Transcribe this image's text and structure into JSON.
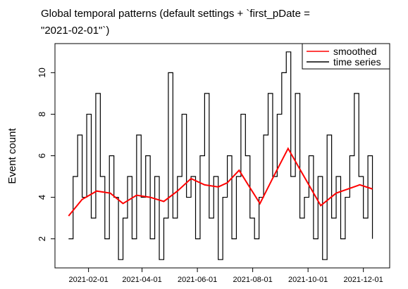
{
  "chart_data": {
    "type": "line",
    "title": [
      "Global temporal patterns (default settings + `first_pDate =",
      "\"2021-02-01\"`)"
    ],
    "y_label": "Event count",
    "xlim": [
      "2020-12-26",
      "2021-12-30"
    ],
    "xticks": [
      "2021-02-01",
      "2021-04-01",
      "2021-06-01",
      "2021-08-01",
      "2021-10-01",
      "2021-12-01"
    ],
    "ylim": [
      0.6,
      11.4
    ],
    "yticks": [
      2,
      4,
      6,
      8,
      10
    ],
    "grid": false,
    "legend": "top-right",
    "series": [
      {
        "name": "smoothed",
        "color": "#ff0000",
        "style": "smooth",
        "x": [
          "2021-01-10",
          "2021-01-25",
          "2021-02-10",
          "2021-02-25",
          "2021-03-11",
          "2021-03-26",
          "2021-04-10",
          "2021-04-25",
          "2021-05-10",
          "2021-05-25",
          "2021-06-09",
          "2021-06-24",
          "2021-07-04",
          "2021-07-17",
          "2021-07-27",
          "2021-08-09",
          "2021-08-24",
          "2021-09-09",
          "2021-09-24",
          "2021-10-15",
          "2021-11-01",
          "2021-11-27",
          "2021-12-11"
        ],
        "values": [
          3.1,
          3.9,
          4.3,
          4.2,
          3.7,
          4.1,
          4.0,
          3.8,
          4.3,
          4.9,
          4.6,
          4.5,
          4.7,
          5.3,
          4.6,
          3.7,
          5.0,
          6.35,
          5.2,
          3.6,
          4.2,
          4.6,
          4.4
        ]
      },
      {
        "name": "time series",
        "color": "#000000",
        "style": "step",
        "x": [
          "2021-01-10",
          "2021-01-15",
          "2021-01-20",
          "2021-01-25",
          "2021-01-30",
          "2021-02-04",
          "2021-02-09",
          "2021-02-14",
          "2021-02-19",
          "2021-02-24",
          "2021-03-01",
          "2021-03-06",
          "2021-03-11",
          "2021-03-16",
          "2021-03-21",
          "2021-03-26",
          "2021-03-31",
          "2021-04-05",
          "2021-04-10",
          "2021-04-15",
          "2021-04-20",
          "2021-04-25",
          "2021-04-30",
          "2021-05-05",
          "2021-05-10",
          "2021-05-15",
          "2021-05-20",
          "2021-05-25",
          "2021-05-30",
          "2021-06-04",
          "2021-06-09",
          "2021-06-14",
          "2021-06-19",
          "2021-06-24",
          "2021-06-29",
          "2021-07-04",
          "2021-07-09",
          "2021-07-14",
          "2021-07-19",
          "2021-07-24",
          "2021-07-29",
          "2021-08-03",
          "2021-08-08",
          "2021-08-13",
          "2021-08-18",
          "2021-08-23",
          "2021-08-28",
          "2021-09-02",
          "2021-09-07",
          "2021-09-12",
          "2021-09-17",
          "2021-09-22",
          "2021-09-27",
          "2021-10-02",
          "2021-10-07",
          "2021-10-12",
          "2021-10-17",
          "2021-10-22",
          "2021-10-27",
          "2021-11-01",
          "2021-11-06",
          "2021-11-11",
          "2021-11-16",
          "2021-11-21",
          "2021-11-26",
          "2021-12-01",
          "2021-12-06",
          "2021-12-11"
        ],
        "values": [
          2,
          5,
          7,
          4,
          8,
          3,
          9,
          5,
          2,
          6,
          4,
          1,
          3,
          5,
          2,
          7,
          4,
          6,
          2,
          5,
          1,
          3,
          10,
          3,
          5,
          8,
          4,
          5,
          2,
          6,
          9,
          3,
          5,
          1,
          4,
          6,
          2,
          5,
          8,
          6,
          3,
          2,
          4,
          7,
          9,
          5,
          8,
          10,
          11,
          5,
          9,
          3,
          4,
          6,
          2,
          5,
          1,
          7,
          3,
          5,
          2,
          4,
          6,
          9,
          5,
          3,
          6,
          2
        ]
      }
    ]
  }
}
